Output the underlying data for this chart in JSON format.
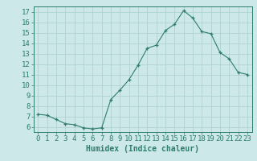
{
  "x": [
    0,
    1,
    2,
    3,
    4,
    5,
    6,
    7,
    8,
    9,
    10,
    11,
    12,
    13,
    14,
    15,
    16,
    17,
    18,
    19,
    20,
    21,
    22,
    23
  ],
  "y": [
    7.2,
    7.1,
    6.7,
    6.3,
    6.2,
    5.9,
    5.8,
    5.9,
    8.6,
    9.5,
    10.5,
    11.9,
    13.5,
    13.8,
    15.2,
    15.8,
    17.1,
    16.4,
    15.1,
    14.9,
    13.1,
    12.5,
    11.2,
    11.0
  ],
  "line_color": "#2e7d6e",
  "marker": "+",
  "marker_size": 3,
  "bg_color": "#cce8e8",
  "grid_color": "#aacece",
  "xlabel": "Humidex (Indice chaleur)",
  "ylim": [
    5.5,
    17.5
  ],
  "xlim": [
    -0.5,
    23.5
  ],
  "yticks": [
    6,
    7,
    8,
    9,
    10,
    11,
    12,
    13,
    14,
    15,
    16,
    17
  ],
  "xticks": [
    0,
    1,
    2,
    3,
    4,
    5,
    6,
    7,
    8,
    9,
    10,
    11,
    12,
    13,
    14,
    15,
    16,
    17,
    18,
    19,
    20,
    21,
    22,
    23
  ],
  "tick_color": "#2e7d6e",
  "label_color": "#2e7d6e",
  "font_size": 6.5
}
